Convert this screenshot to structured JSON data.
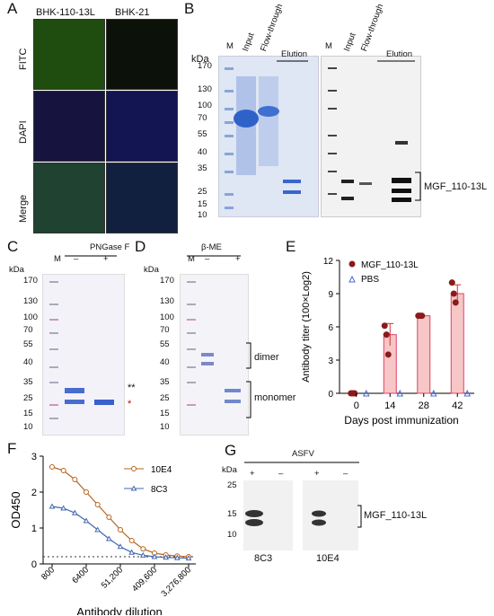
{
  "panels": {
    "A": {
      "label": "A",
      "columns": [
        "BHK-110-13L",
        "BHK-21"
      ],
      "rows": [
        "FITC",
        "DAPI",
        "Merge"
      ]
    },
    "B": {
      "label": "B",
      "kda": "kDa",
      "lanes": [
        "M",
        "Input",
        "Flow-through",
        "Elution"
      ],
      "lanes_right": [
        "M",
        "Input",
        "Flow-through",
        "Elution"
      ],
      "markers": [
        "170",
        "130",
        "100",
        "70",
        "55",
        "40",
        "35",
        "25",
        "15",
        "10"
      ],
      "band_label": "MGF_110-13L"
    },
    "C": {
      "label": "C",
      "title": "PNGase F",
      "kda": "kDa",
      "lanes": [
        "M",
        "–",
        "+"
      ],
      "markers": [
        "170",
        "130",
        "100",
        "70",
        "55",
        "40",
        "35",
        "25",
        "15",
        "10"
      ],
      "marks": [
        "**",
        "*"
      ]
    },
    "D": {
      "label": "D",
      "title": "β-ME",
      "kda": "kDa",
      "lanes": [
        "M",
        "–",
        "+"
      ],
      "markers": [
        "170",
        "130",
        "100",
        "70",
        "55",
        "40",
        "35",
        "25",
        "15",
        "10"
      ],
      "dimer": "dimer",
      "monomer": "monomer"
    },
    "E": {
      "label": "E",
      "ylabel": "Antibody titer (100×Log2)",
      "xlabel": "Days post immunization",
      "legend": [
        "MGF_110-13L",
        "PBS"
      ]
    },
    "F": {
      "label": "F",
      "ylabel": "OD450",
      "xlabel": "Antibody dilution",
      "legend": [
        "10E4",
        "8C3"
      ]
    },
    "G": {
      "label": "G",
      "title": "ASFV",
      "kda": "kDa",
      "lanes": [
        "+",
        "–",
        "+",
        "–"
      ],
      "markers": [
        "25",
        "15",
        "10"
      ],
      "band_label": "MGF_110-13L",
      "blot_names": [
        "8C3",
        "10E4"
      ]
    }
  },
  "chart_data": [
    {
      "panel": "E",
      "type": "bar",
      "categories": [
        "0",
        "14",
        "28",
        "42"
      ],
      "ylim": [
        0,
        12
      ],
      "yticks": [
        "0",
        "3",
        "6",
        "9",
        "12"
      ],
      "series": [
        {
          "name": "MGF_110-13L",
          "values": [
            0,
            5.3,
            7.0,
            9.0
          ],
          "errors": [
            0,
            1.0,
            0,
            0.8
          ],
          "points": [
            [
              0,
              0,
              0
            ],
            [
              6.1,
              5.3,
              3.5
            ],
            [
              7.0,
              7.0,
              7.0
            ],
            [
              10.0,
              9.0,
              8.2
            ]
          ]
        },
        {
          "name": "PBS",
          "values": [
            0,
            0,
            0,
            0
          ]
        }
      ]
    },
    {
      "panel": "F",
      "type": "line",
      "x": [
        "800",
        "1600",
        "3200",
        "6400",
        "12,800",
        "25,600",
        "51,200",
        "102,400",
        "204,800",
        "409,600",
        "819,200",
        "1,638,400",
        "3,276,800"
      ],
      "xticks": [
        "800",
        "6400",
        "51,200",
        "409,600",
        "3,276,800"
      ],
      "ylim": [
        0,
        3
      ],
      "yticks": [
        "0",
        "1",
        "2",
        "3"
      ],
      "threshold": 0.2,
      "series": [
        {
          "name": "10E4",
          "color": "#b5651d",
          "values": [
            2.7,
            2.6,
            2.35,
            2.0,
            1.65,
            1.3,
            0.95,
            0.65,
            0.42,
            0.3,
            0.25,
            0.22,
            0.2
          ]
        },
        {
          "name": "8C3",
          "color": "#4169b0",
          "values": [
            1.6,
            1.55,
            1.42,
            1.2,
            0.95,
            0.7,
            0.48,
            0.32,
            0.24,
            0.2,
            0.18,
            0.17,
            0.16
          ]
        }
      ]
    }
  ]
}
